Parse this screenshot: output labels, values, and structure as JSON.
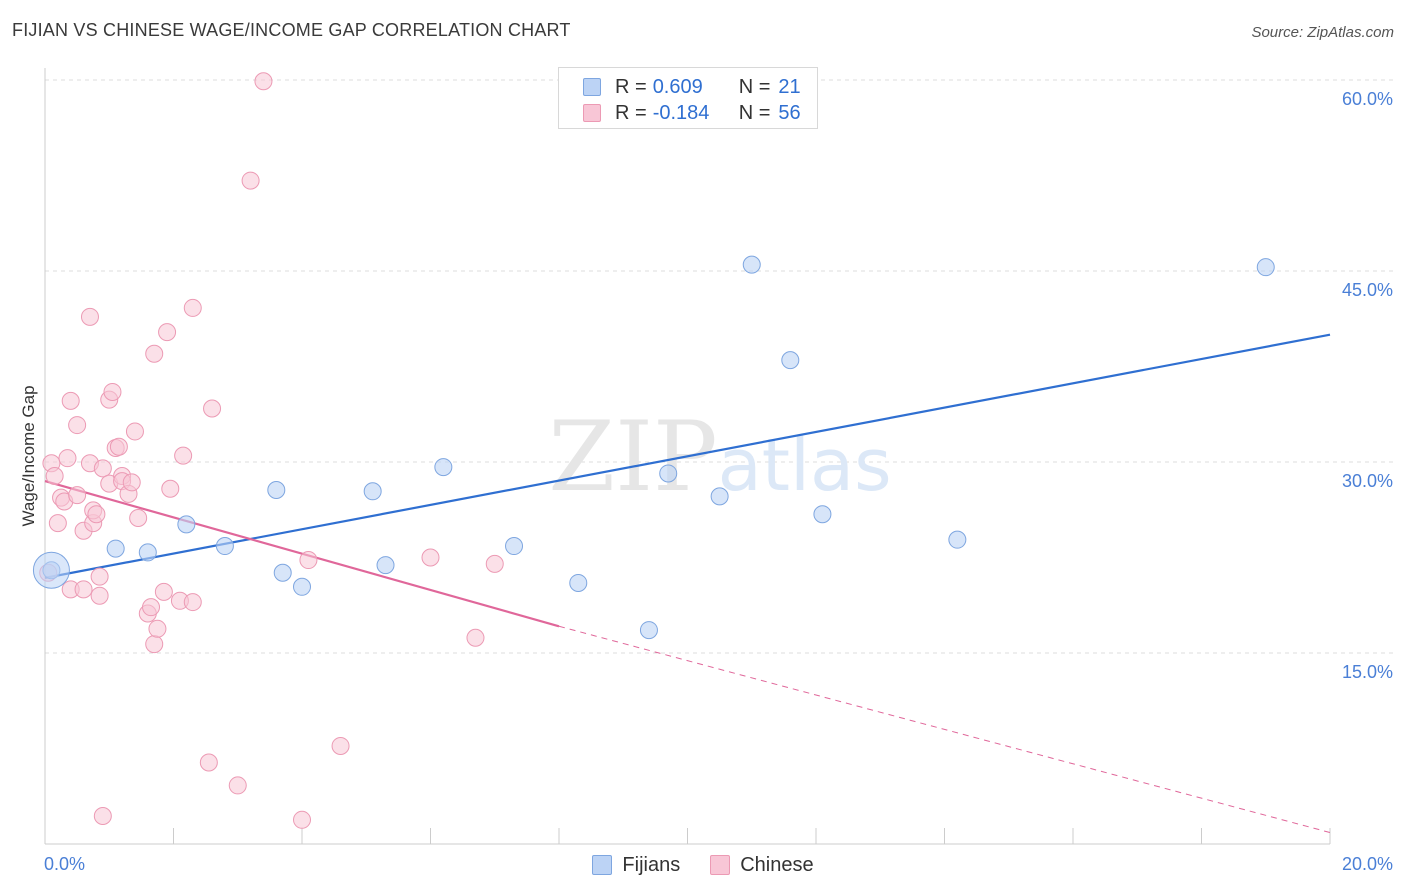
{
  "title": "FIJIAN VS CHINESE WAGE/INCOME GAP CORRELATION CHART",
  "source": "Source: ZipAtlas.com",
  "legend": {
    "r_label": "R =",
    "n_label": "N =",
    "rows": [
      {
        "series": "Fijians",
        "r": "0.609",
        "n": "21"
      },
      {
        "series": "Chinese",
        "r": "-0.184",
        "n": "56"
      }
    ]
  },
  "bottom_legend": [
    "Fijians",
    "Chinese"
  ],
  "colors": {
    "fijians_fill": "#bcd3f5",
    "fijians_stroke": "#7ea6e0",
    "fijians_line": "#2f6fd1",
    "chinese_fill": "#f8c6d6",
    "chinese_stroke": "#ec9ab4",
    "chinese_line": "#e0679a",
    "axis_text": "#4a7fd6",
    "grid": "#dddddd"
  },
  "chart_data": {
    "type": "scatter",
    "title": "FIJIAN VS CHINESE WAGE/INCOME GAP CORRELATION CHART",
    "xlabel": "",
    "ylabel": "Wage/Income Gap",
    "xlim": [
      0,
      20
    ],
    "ylim": [
      0,
      60
    ],
    "x_tick_labels": [
      "0.0%",
      "20.0%"
    ],
    "y_ticks": [
      15,
      30,
      45,
      60
    ],
    "y_tick_labels": [
      "15.0%",
      "30.0%",
      "45.0%",
      "60.0%"
    ],
    "watermark": "ZIPatlas",
    "series": [
      {
        "name": "Fijians",
        "points": [
          [
            0.1,
            21.5
          ],
          [
            1.1,
            23.2
          ],
          [
            1.6,
            22.9
          ],
          [
            2.2,
            25.1
          ],
          [
            2.8,
            23.4
          ],
          [
            3.6,
            27.8
          ],
          [
            3.7,
            21.3
          ],
          [
            4.0,
            20.2
          ],
          [
            5.1,
            27.7
          ],
          [
            5.3,
            21.9
          ],
          [
            6.2,
            29.6
          ],
          [
            7.3,
            23.4
          ],
          [
            8.3,
            20.5
          ],
          [
            9.4,
            16.8
          ],
          [
            9.7,
            29.1
          ],
          [
            10.5,
            27.3
          ],
          [
            11.0,
            45.5
          ],
          [
            11.6,
            38.0
          ],
          [
            12.1,
            25.9
          ],
          [
            14.2,
            23.9
          ],
          [
            19.0,
            45.3
          ]
        ],
        "trend": {
          "x": [
            0,
            20
          ],
          "y": [
            20.9,
            40.0
          ]
        }
      },
      {
        "name": "Chinese",
        "points": [
          [
            0.05,
            21.3
          ],
          [
            0.1,
            29.9
          ],
          [
            0.15,
            28.9
          ],
          [
            0.2,
            25.2
          ],
          [
            0.25,
            27.2
          ],
          [
            0.3,
            26.9
          ],
          [
            0.35,
            30.3
          ],
          [
            0.4,
            20.0
          ],
          [
            0.4,
            34.8
          ],
          [
            0.5,
            32.9
          ],
          [
            0.5,
            27.4
          ],
          [
            0.6,
            20.0
          ],
          [
            0.6,
            24.6
          ],
          [
            0.7,
            29.9
          ],
          [
            0.7,
            41.4
          ],
          [
            0.75,
            25.2
          ],
          [
            0.75,
            26.2
          ],
          [
            0.8,
            25.9
          ],
          [
            0.85,
            21.0
          ],
          [
            0.85,
            19.5
          ],
          [
            0.9,
            29.5
          ],
          [
            0.9,
            2.2
          ],
          [
            1.0,
            28.3
          ],
          [
            1.0,
            34.9
          ],
          [
            1.05,
            35.5
          ],
          [
            1.1,
            31.1
          ],
          [
            1.15,
            31.2
          ],
          [
            1.2,
            28.9
          ],
          [
            1.2,
            28.5
          ],
          [
            1.3,
            27.5
          ],
          [
            1.35,
            28.4
          ],
          [
            1.4,
            32.4
          ],
          [
            1.45,
            25.6
          ],
          [
            1.6,
            18.1
          ],
          [
            1.65,
            18.6
          ],
          [
            1.7,
            15.7
          ],
          [
            1.7,
            38.5
          ],
          [
            1.75,
            16.9
          ],
          [
            1.85,
            19.8
          ],
          [
            1.9,
            40.2
          ],
          [
            1.95,
            27.9
          ],
          [
            2.1,
            19.1
          ],
          [
            2.15,
            30.5
          ],
          [
            2.3,
            19.0
          ],
          [
            2.3,
            42.1
          ],
          [
            2.55,
            6.4
          ],
          [
            2.6,
            34.2
          ],
          [
            3.0,
            4.6
          ],
          [
            3.2,
            52.1
          ],
          [
            3.4,
            59.9
          ],
          [
            4.0,
            1.9
          ],
          [
            4.1,
            22.3
          ],
          [
            4.6,
            7.7
          ],
          [
            6.0,
            22.5
          ],
          [
            6.7,
            16.2
          ],
          [
            7.0,
            22.0
          ]
        ],
        "trend": {
          "x": [
            0,
            8
          ],
          "y": [
            28.5,
            17.1
          ]
        },
        "trend_extrapolated": {
          "x": [
            8,
            20
          ],
          "y": [
            17.1,
            0.9
          ]
        }
      }
    ]
  }
}
